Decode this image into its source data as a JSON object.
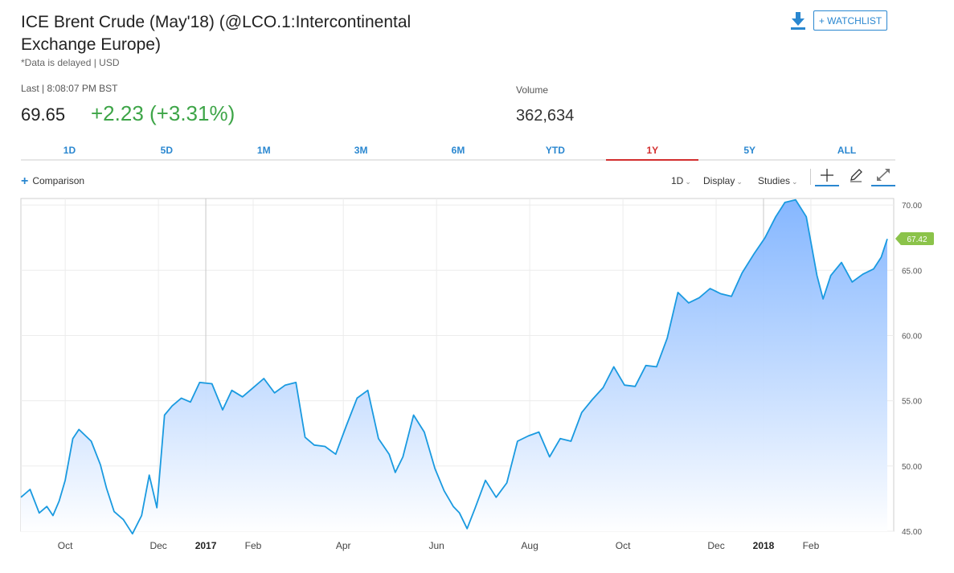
{
  "header": {
    "title": "ICE Brent Crude (May'18) (@LCO.1:Intercontinental Exchange Europe)",
    "delayed_note": "*Data is delayed | USD",
    "watchlist_label": "+ WATCHLIST",
    "download_icon": "download-icon"
  },
  "quote": {
    "last_label": "Last | 8:08:07 PM BST",
    "last_price": "69.65",
    "change": "+2.23 (+3.31%)",
    "volume_label": "Volume",
    "volume_value": "362,634"
  },
  "tabs": [
    {
      "label": "1D",
      "active": false
    },
    {
      "label": "5D",
      "active": false
    },
    {
      "label": "1M",
      "active": false
    },
    {
      "label": "3M",
      "active": false
    },
    {
      "label": "6M",
      "active": false
    },
    {
      "label": "YTD",
      "active": false
    },
    {
      "label": "1Y",
      "active": true
    },
    {
      "label": "5Y",
      "active": false
    },
    {
      "label": "ALL",
      "active": false
    }
  ],
  "toolbar": {
    "comparison_label": "Comparison",
    "interval_label": "1D",
    "display_label": "Display",
    "studies_label": "Studies",
    "icons": [
      "crosshair-icon",
      "pencil-icon",
      "expand-icon"
    ]
  },
  "colors": {
    "accent": "#2a87d0",
    "positive": "#3ea548",
    "active_tab": "#d32f2f",
    "line": "#1a9ae0",
    "fill_top": "#7fb3ff",
    "fill_bottom": "#ffffff",
    "badge": "#8bc34a"
  },
  "chart_data": {
    "type": "area",
    "ylim": [
      45,
      70.5
    ],
    "y_ticks": [
      "45.00",
      "50.00",
      "55.00",
      "60.00",
      "65.00",
      "70.00"
    ],
    "x_ticks": [
      {
        "label": "Oct",
        "bold": false,
        "date": "2016-10-01"
      },
      {
        "label": "Dec",
        "bold": false,
        "date": "2016-12-01"
      },
      {
        "label": "2017",
        "bold": true,
        "date": "2017-01-01"
      },
      {
        "label": "Feb",
        "bold": false,
        "date": "2017-02-01"
      },
      {
        "label": "Apr",
        "bold": false,
        "date": "2017-04-01"
      },
      {
        "label": "Jun",
        "bold": false,
        "date": "2017-06-01"
      },
      {
        "label": "Aug",
        "bold": false,
        "date": "2017-08-01"
      },
      {
        "label": "Oct",
        "bold": false,
        "date": "2017-10-01"
      },
      {
        "label": "Dec",
        "bold": false,
        "date": "2017-12-01"
      },
      {
        "label": "2018",
        "bold": true,
        "date": "2018-01-01"
      },
      {
        "label": "Feb",
        "bold": false,
        "date": "2018-02-01"
      }
    ],
    "last_value_label": "67.42",
    "grid": true,
    "series": [
      {
        "x": [
          "2016-09-02",
          "2016-09-08",
          "2016-09-14",
          "2016-09-19",
          "2016-09-23",
          "2016-09-27",
          "2016-10-01",
          "2016-10-06",
          "2016-10-10",
          "2016-10-18",
          "2016-10-24",
          "2016-10-28",
          "2016-11-02",
          "2016-11-08",
          "2016-11-14",
          "2016-11-20",
          "2016-11-25",
          "2016-11-30",
          "2016-12-05",
          "2016-12-10",
          "2016-12-16",
          "2016-12-22",
          "2016-12-28",
          "2017-01-05",
          "2017-01-12",
          "2017-01-18",
          "2017-01-25",
          "2017-02-01",
          "2017-02-08",
          "2017-02-15",
          "2017-02-22",
          "2017-03-01",
          "2017-03-07",
          "2017-03-13",
          "2017-03-20",
          "2017-03-27",
          "2017-04-03",
          "2017-04-10",
          "2017-04-17",
          "2017-04-24",
          "2017-05-01",
          "2017-05-05",
          "2017-05-10",
          "2017-05-17",
          "2017-05-24",
          "2017-05-31",
          "2017-06-06",
          "2017-06-12",
          "2017-06-16",
          "2017-06-21",
          "2017-06-26",
          "2017-07-03",
          "2017-07-10",
          "2017-07-17",
          "2017-07-24",
          "2017-07-31",
          "2017-08-07",
          "2017-08-14",
          "2017-08-21",
          "2017-08-28",
          "2017-09-04",
          "2017-09-11",
          "2017-09-18",
          "2017-09-25",
          "2017-10-02",
          "2017-10-09",
          "2017-10-16",
          "2017-10-23",
          "2017-10-30",
          "2017-11-06",
          "2017-11-13",
          "2017-11-20",
          "2017-11-27",
          "2017-12-04",
          "2017-12-11",
          "2017-12-18",
          "2017-12-26",
          "2018-01-02",
          "2018-01-09",
          "2018-01-15",
          "2018-01-22",
          "2018-01-29",
          "2018-02-05",
          "2018-02-09",
          "2018-02-14",
          "2018-02-21",
          "2018-02-28",
          "2018-03-07",
          "2018-03-14",
          "2018-03-19",
          "2018-03-23"
        ],
        "values": [
          47.6,
          48.2,
          46.4,
          46.9,
          46.2,
          47.3,
          48.9,
          52.1,
          52.8,
          51.9,
          50.1,
          48.3,
          46.5,
          45.9,
          44.8,
          46.2,
          49.3,
          46.8,
          53.9,
          54.6,
          55.2,
          54.9,
          56.4,
          56.3,
          54.3,
          55.8,
          55.3,
          56.0,
          56.7,
          55.6,
          56.2,
          56.4,
          52.2,
          51.6,
          51.5,
          50.9,
          53.1,
          55.2,
          55.8,
          52.1,
          50.9,
          49.5,
          50.7,
          53.9,
          52.6,
          49.8,
          48.1,
          46.9,
          46.4,
          45.2,
          46.7,
          48.9,
          47.6,
          48.7,
          51.9,
          52.3,
          52.6,
          50.7,
          52.1,
          51.9,
          54.1,
          55.1,
          56.0,
          57.6,
          56.2,
          56.1,
          57.7,
          57.6,
          59.8,
          63.3,
          62.5,
          62.9,
          63.6,
          63.2,
          63.0,
          64.8,
          66.3,
          67.5,
          69.1,
          70.2,
          70.4,
          69.1,
          64.6,
          62.8,
          64.6,
          65.6,
          64.1,
          64.7,
          65.1,
          66.0,
          67.4
        ]
      }
    ]
  }
}
